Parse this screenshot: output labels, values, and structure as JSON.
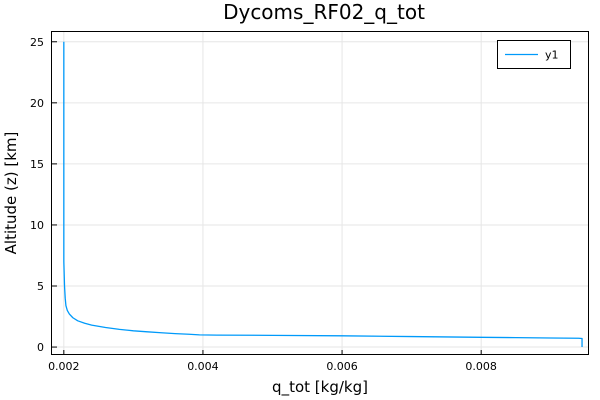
{
  "chart_data": {
    "type": "line",
    "title": "Dycoms_RF02_q_tot",
    "xlabel": "q_tot [kg/kg]",
    "ylabel": "Altitude (z) [km]",
    "xlim": [
      0.00183,
      0.00955
    ],
    "ylim": [
      -0.65,
      25.8
    ],
    "xticks": [
      0.002,
      0.004,
      0.006,
      0.008
    ],
    "xtick_labels": [
      "0.002",
      "0.004",
      "0.006",
      "0.008"
    ],
    "yticks": [
      0,
      5,
      10,
      15,
      20,
      25
    ],
    "ytick_labels": [
      "0",
      "5",
      "10",
      "15",
      "20",
      "25"
    ],
    "grid": true,
    "legend_position": "top-right",
    "series_color": "#009AFA",
    "series": [
      {
        "name": "y1",
        "x": [
          0.00945,
          0.00945,
          0.0094,
          0.009,
          0.0085,
          0.008,
          0.007,
          0.006,
          0.005,
          0.0042,
          0.00395,
          0.0038,
          0.0036,
          0.0034,
          0.0032,
          0.003,
          0.0028,
          0.0026,
          0.0024,
          0.0023,
          0.0022,
          0.00213,
          0.00208,
          0.00205,
          0.00203,
          0.00202,
          0.00201,
          0.002,
          0.002,
          0.002,
          0.002,
          0.002
        ],
        "y": [
          0.0,
          0.7,
          0.72,
          0.74,
          0.77,
          0.8,
          0.86,
          0.92,
          0.96,
          0.98,
          1.0,
          1.05,
          1.1,
          1.17,
          1.25,
          1.33,
          1.45,
          1.6,
          1.8,
          1.95,
          2.15,
          2.4,
          2.7,
          3.0,
          3.4,
          4.0,
          5.0,
          7.0,
          10.0,
          15.0,
          20.0,
          25.0
        ]
      }
    ]
  }
}
